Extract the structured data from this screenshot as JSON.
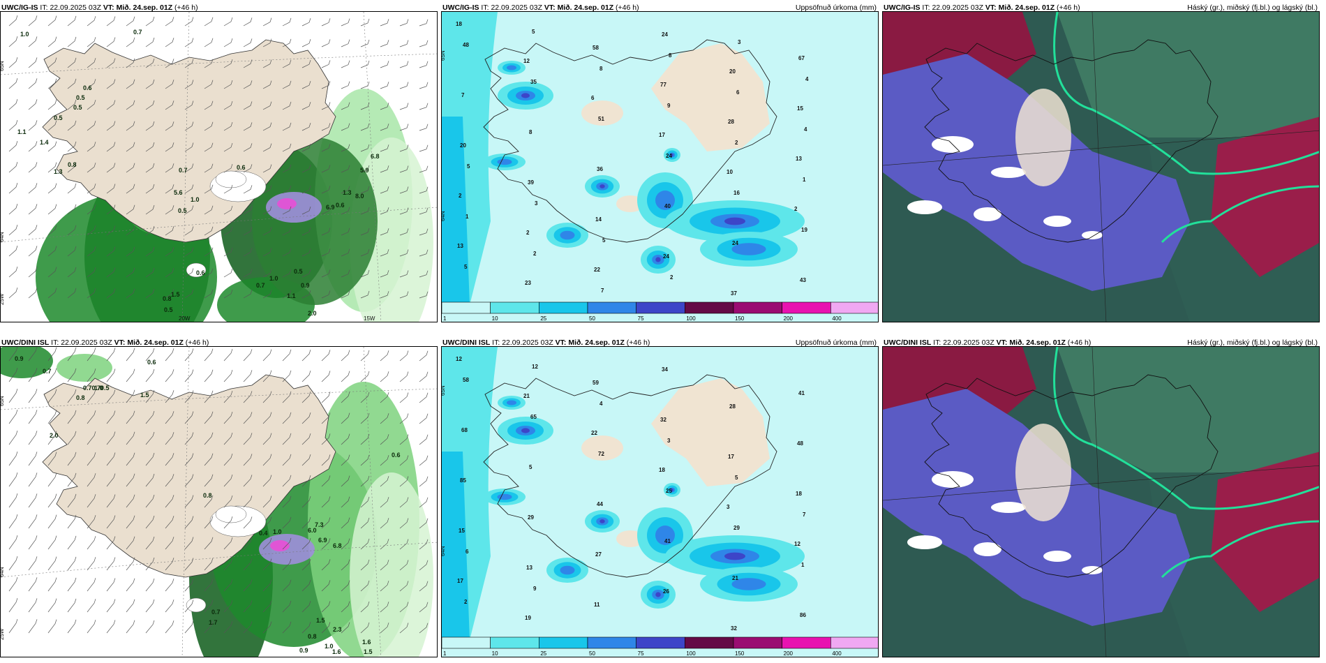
{
  "panels": [
    {
      "model": "UWC/IG-IS",
      "it_label": "IT:",
      "it": "22.09.2025 03Z",
      "vt_label": "VT:",
      "vt": "Mið. 24.sep. 01Z",
      "lead": "(+46 h)",
      "right": ""
    },
    {
      "model": "UWC/IG-IS",
      "it_label": "IT:",
      "it": "22.09.2025 03Z",
      "vt_label": "VT:",
      "vt": "Mið. 24.sep. 01Z",
      "lead": "(+46 h)",
      "right": "Uppsöfnuð úrkoma (mm)"
    },
    {
      "model": "UWC/IG-IS",
      "it_label": "IT:",
      "it": "22.09.2025 03Z",
      "vt_label": "VT:",
      "vt": "Mið. 24.sep. 01Z",
      "lead": "(+46 h)",
      "right": "Háský (gr.), miðský (fj.bl.) og lágský (bl.)"
    },
    {
      "model": "UWC/DINI ISL",
      "it_label": "IT:",
      "it": "22.09.2025 03Z",
      "vt_label": "VT:",
      "vt": "Mið. 24.sep. 01Z",
      "lead": "(+46 h)",
      "right": ""
    },
    {
      "model": "UWC/DINI ISL",
      "it_label": "IT:",
      "it": "22.09.2025 03Z",
      "vt_label": "VT:",
      "vt": "Mið. 24.sep. 01Z",
      "lead": "(+46 h)",
      "right": "Uppsöfnuð úrkoma (mm)"
    },
    {
      "model": "UWC/DINI ISL",
      "it_label": "IT:",
      "it": "22.09.2025 03Z",
      "vt_label": "VT:",
      "vt": "Mið. 24.sep. 01Z",
      "lead": "(+46 h)",
      "right": "Háský (gr.), miðský (fj.bl.) og lágský (bl.)"
    }
  ],
  "colorbar": {
    "ticks": [
      "1",
      "10",
      "25",
      "50",
      "75",
      "100",
      "150",
      "200",
      "400"
    ],
    "colors": [
      "#c8f7f7",
      "#5ee6ea",
      "#19c6ea",
      "#2f86e8",
      "#3d45c8",
      "#640a46",
      "#9a0c72",
      "#e812b0",
      "#f0a8f2"
    ]
  },
  "grid_labels": {
    "lat_65": "65N",
    "lat_64": "64N",
    "lon_20": "20W",
    "lon_15": "15W",
    "lon_25": "25W"
  },
  "wind_values_top": [
    "1.0",
    "0.7",
    "0.6",
    "0.5",
    "0.5",
    "0.5",
    "1.1",
    "1.4",
    "0.8",
    "1.3",
    "0.7",
    "5.6",
    "1.0",
    "0.5",
    "0.6",
    "1.3",
    "0.6",
    "6.9",
    "8.0",
    "6.8",
    "5.9",
    "1.0",
    "0.7",
    "0.5",
    "0.8",
    "1.1",
    "0.9",
    "2.0",
    "0.5",
    "0.6",
    "1.5"
  ],
  "wind_values_bottom": [
    "0.9",
    "0.7",
    "0.6",
    "0.70.70.5",
    "0.8",
    "1.0",
    "1.5",
    "2.0",
    "0.8",
    "0.4",
    "1.0",
    "7.3",
    "6.0",
    "6.9",
    "6.8",
    "0.6",
    "0.7",
    "1.7",
    "1.5",
    "2.3",
    "1.0",
    "0.8",
    "1.6",
    "1.5",
    "1.6",
    "0.9"
  ],
  "precip_values_top": [
    "18",
    "12",
    "6",
    "17",
    "10",
    "2",
    "13",
    "23",
    "58",
    "77",
    "28",
    "13",
    "2",
    "2",
    "22",
    "24",
    "20",
    "15",
    "20",
    "39",
    "14",
    "24",
    "37",
    "67",
    "7",
    "8",
    "36",
    "40",
    "24",
    "43",
    "48",
    "35",
    "51",
    "24",
    "16",
    "19",
    "5",
    "5",
    "8",
    "9",
    "2",
    "1",
    "1",
    "2",
    "7",
    "8",
    "6",
    "4",
    "5",
    "3",
    "5",
    "2",
    "3",
    "4"
  ],
  "precip_values_bottom": [
    "12",
    "21",
    "22",
    "18",
    "3",
    "12",
    "17",
    "19",
    "59",
    "32",
    "17",
    "18",
    "15",
    "13",
    "11",
    "34",
    "28",
    "48",
    "85",
    "29",
    "27",
    "26",
    "32",
    "41",
    "68",
    "5",
    "44",
    "41",
    "21",
    "86",
    "58",
    "65",
    "72",
    "25",
    "29",
    "1",
    "2",
    "12",
    "4",
    "3",
    "5",
    "7",
    "6",
    "9"
  ]
}
